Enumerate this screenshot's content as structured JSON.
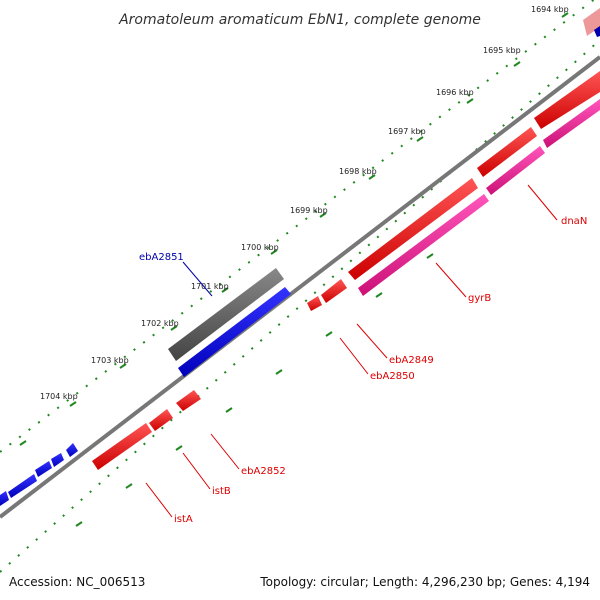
{
  "title": "Aromatoleum aromaticum EbN1, complete genome",
  "footer": {
    "accession": "Accession: NC_006513",
    "summary": "Topology: circular; Length: 4,296,230 bp; Genes: 4,194"
  },
  "kbp_labels": [
    "1694 kbp",
    "1695 kbp",
    "1696 kbp",
    "1697 kbp",
    "1698 kbp",
    "1699 kbp",
    "1700 kbp",
    "1701 kbp",
    "1702 kbp",
    "1703 kbp",
    "1704 kbp"
  ],
  "gene_labels": {
    "ebA2851": "ebA2851",
    "dnaN": "dnaN",
    "gyrB": "gyrB",
    "ebA2849": "ebA2849",
    "ebA2850": "ebA2850",
    "ebA2852": "ebA2852",
    "istB": "istB",
    "istA": "istA"
  },
  "colors": {
    "forward_gene": "#0000ee",
    "reverse_gene": "#ee0000",
    "rna": "#ee3399",
    "other": "#666666",
    "backbone": "#777777",
    "tick": "#228822"
  }
}
